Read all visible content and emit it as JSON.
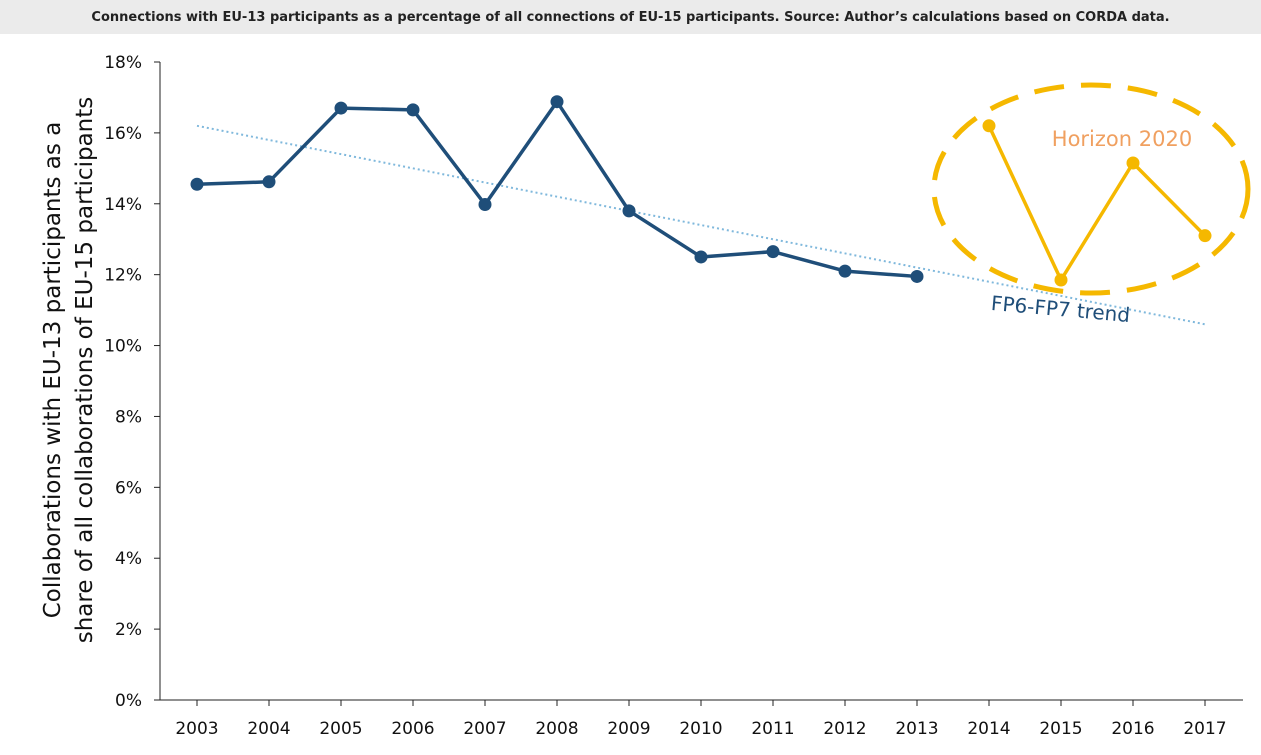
{
  "caption": "Connections with EU-13 participants as a percentage of all connections of EU-15 participants. Source: Author’s calculations based on CORDA data.",
  "colors": {
    "fp": "#1f4e79",
    "h2020": "#f5b800",
    "h2020_text": "#f0a060",
    "trend": "#7fb8dc",
    "axis": "#222222"
  },
  "chart_data": {
    "type": "line",
    "title": "",
    "xlabel": "",
    "ylabel_lines": [
      "Collaborations with EU-13 participants as a",
      "share of all collaborations of EU-15 participants"
    ],
    "categories": [
      "2003",
      "2004",
      "2005",
      "2006",
      "2007",
      "2008",
      "2009",
      "2010",
      "2011",
      "2012",
      "2013",
      "2014",
      "2015",
      "2016",
      "2017"
    ],
    "ylim": [
      0,
      18
    ],
    "yticks": [
      0,
      2,
      4,
      6,
      8,
      10,
      12,
      14,
      16,
      18
    ],
    "ytick_labels": [
      "0%",
      "2%",
      "4%",
      "6%",
      "8%",
      "10%",
      "12%",
      "14%",
      "16%",
      "18%"
    ],
    "grid": false,
    "series": [
      {
        "values": [
          14.55,
          14.62,
          16.7,
          16.65,
          13.98,
          16.88,
          13.8,
          12.5,
          12.65,
          12.1,
          11.95,
          null,
          null,
          null,
          null
        ]
      },
      {
        "values": [
          null,
          null,
          null,
          null,
          null,
          null,
          null,
          null,
          null,
          null,
          null,
          16.2,
          11.85,
          15.15,
          13.1
        ]
      }
    ],
    "trend": {
      "from": [
        "2003",
        16.2
      ],
      "to": [
        "2017",
        10.6
      ]
    },
    "annotations": [
      "Horizon 2020",
      "FP6-FP7 trend"
    ]
  }
}
